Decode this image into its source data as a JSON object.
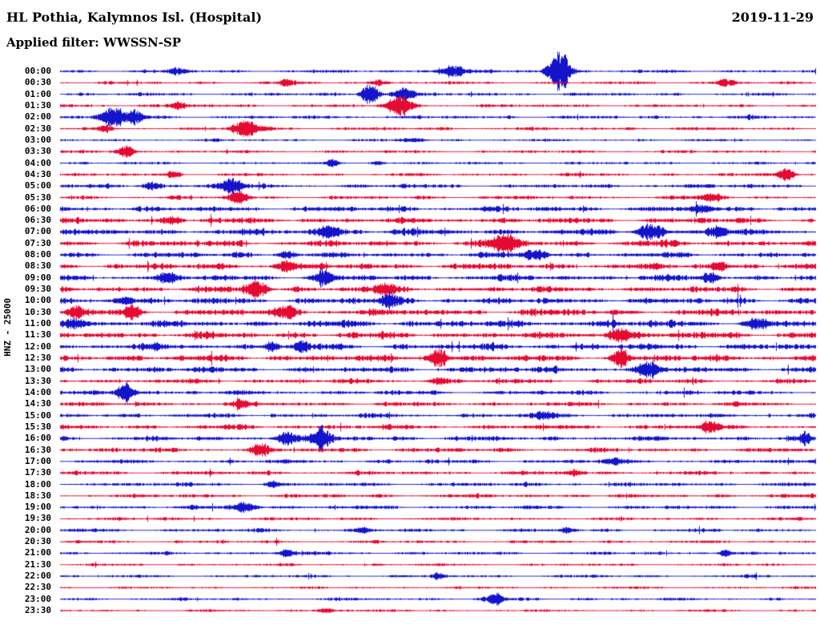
{
  "header": {
    "station_title": "HL Pothia, Kalymnos Isl. (Hospital)",
    "date": "2019-11-29",
    "filter_label": "Applied filter: WWSSN-SP"
  },
  "chart_data": {
    "type": "line",
    "variant": "helicorder-seismogram",
    "title": "HL Pothia, Kalymnos Isl. (Hospital)",
    "date": "2019-11-29",
    "filter": "WWSSN-SP",
    "channel_scale": "HNZ - 25000",
    "row_interval_minutes": 30,
    "legend": "none",
    "grid": false,
    "colors": {
      "blue": "#1414cc",
      "red": "#e60a33"
    },
    "rows": [
      {
        "label": "00:00",
        "color": "blue",
        "amp": 2.0,
        "bursts": [
          {
            "x": 0.155,
            "a": 4,
            "w": 0.01
          },
          {
            "x": 0.52,
            "a": 8,
            "w": 0.012
          },
          {
            "x": 0.66,
            "a": 26,
            "w": 0.01
          }
        ]
      },
      {
        "label": "00:30",
        "color": "red",
        "amp": 1.8,
        "bursts": [
          {
            "x": 0.3,
            "a": 3,
            "w": 0.008
          },
          {
            "x": 0.42,
            "a": 4,
            "w": 0.006
          },
          {
            "x": 0.88,
            "a": 4,
            "w": 0.008
          }
        ]
      },
      {
        "label": "01:00",
        "color": "blue",
        "amp": 2.0,
        "bursts": [
          {
            "x": 0.41,
            "a": 14,
            "w": 0.008
          },
          {
            "x": 0.455,
            "a": 9,
            "w": 0.01
          }
        ]
      },
      {
        "label": "01:30",
        "color": "red",
        "amp": 2.0,
        "bursts": [
          {
            "x": 0.155,
            "a": 5,
            "w": 0.008
          },
          {
            "x": 0.45,
            "a": 13,
            "w": 0.012
          }
        ]
      },
      {
        "label": "02:00",
        "color": "blue",
        "amp": 2.2,
        "bursts": [
          {
            "x": 0.07,
            "a": 14,
            "w": 0.012
          },
          {
            "x": 0.1,
            "a": 9,
            "w": 0.008
          }
        ]
      },
      {
        "label": "02:30",
        "color": "red",
        "amp": 2.0,
        "bursts": [
          {
            "x": 0.06,
            "a": 4,
            "w": 0.006
          },
          {
            "x": 0.245,
            "a": 12,
            "w": 0.012
          }
        ]
      },
      {
        "label": "03:00",
        "color": "blue",
        "amp": 1.6,
        "bursts": [
          {
            "x": 0.47,
            "a": 3,
            "w": 0.01
          }
        ]
      },
      {
        "label": "03:30",
        "color": "red",
        "amp": 1.8,
        "bursts": [
          {
            "x": 0.085,
            "a": 8,
            "w": 0.008
          }
        ]
      },
      {
        "label": "04:00",
        "color": "blue",
        "amp": 1.6,
        "bursts": [
          {
            "x": 0.36,
            "a": 4,
            "w": 0.006
          },
          {
            "x": 0.42,
            "a": 3,
            "w": 0.006
          }
        ]
      },
      {
        "label": "04:30",
        "color": "red",
        "amp": 2.0,
        "bursts": [
          {
            "x": 0.15,
            "a": 5,
            "w": 0.006
          },
          {
            "x": 0.96,
            "a": 9,
            "w": 0.008
          }
        ]
      },
      {
        "label": "05:00",
        "color": "blue",
        "amp": 2.5,
        "bursts": [
          {
            "x": 0.12,
            "a": 6,
            "w": 0.008
          },
          {
            "x": 0.225,
            "a": 10,
            "w": 0.01
          }
        ]
      },
      {
        "label": "05:30",
        "color": "red",
        "amp": 2.2,
        "bursts": [
          {
            "x": 0.235,
            "a": 9,
            "w": 0.008
          },
          {
            "x": 0.86,
            "a": 6,
            "w": 0.01
          }
        ]
      },
      {
        "label": "06:00",
        "color": "blue",
        "amp": 3.5,
        "bursts": [
          {
            "x": 0.85,
            "a": 5,
            "w": 0.01
          }
        ]
      },
      {
        "label": "06:30",
        "color": "red",
        "amp": 3.5,
        "bursts": [
          {
            "x": 0.15,
            "a": 5,
            "w": 0.008
          }
        ]
      },
      {
        "label": "07:00",
        "color": "blue",
        "amp": 4.0,
        "bursts": [
          {
            "x": 0.355,
            "a": 10,
            "w": 0.01
          },
          {
            "x": 0.78,
            "a": 10,
            "w": 0.012
          },
          {
            "x": 0.87,
            "a": 8,
            "w": 0.008
          }
        ]
      },
      {
        "label": "07:30",
        "color": "red",
        "amp": 4.0,
        "bursts": [
          {
            "x": 0.59,
            "a": 12,
            "w": 0.012
          }
        ]
      },
      {
        "label": "08:00",
        "color": "blue",
        "amp": 3.5,
        "bursts": [
          {
            "x": 0.3,
            "a": 5,
            "w": 0.008
          },
          {
            "x": 0.63,
            "a": 6,
            "w": 0.01
          }
        ]
      },
      {
        "label": "08:30",
        "color": "red",
        "amp": 3.8,
        "bursts": [
          {
            "x": 0.3,
            "a": 8,
            "w": 0.008
          },
          {
            "x": 0.87,
            "a": 6,
            "w": 0.008
          }
        ]
      },
      {
        "label": "09:00",
        "color": "blue",
        "amp": 3.8,
        "bursts": [
          {
            "x": 0.14,
            "a": 6,
            "w": 0.008
          },
          {
            "x": 0.35,
            "a": 10,
            "w": 0.008
          },
          {
            "x": 0.86,
            "a": 6,
            "w": 0.008
          }
        ]
      },
      {
        "label": "09:30",
        "color": "red",
        "amp": 3.8,
        "bursts": [
          {
            "x": 0.26,
            "a": 12,
            "w": 0.01
          },
          {
            "x": 0.43,
            "a": 6,
            "w": 0.01
          }
        ]
      },
      {
        "label": "10:00",
        "color": "blue",
        "amp": 4.0,
        "bursts": [
          {
            "x": 0.085,
            "a": 6,
            "w": 0.008
          },
          {
            "x": 0.435,
            "a": 10,
            "w": 0.008
          }
        ]
      },
      {
        "label": "10:30",
        "color": "red",
        "amp": 4.2,
        "bursts": [
          {
            "x": 0.02,
            "a": 8,
            "w": 0.008
          },
          {
            "x": 0.095,
            "a": 8,
            "w": 0.008
          },
          {
            "x": 0.3,
            "a": 6,
            "w": 0.01
          }
        ]
      },
      {
        "label": "11:00",
        "color": "blue",
        "amp": 4.5,
        "bursts": [
          {
            "x": 0.02,
            "a": 6,
            "w": 0.01
          },
          {
            "x": 0.92,
            "a": 6,
            "w": 0.01
          }
        ]
      },
      {
        "label": "11:30",
        "color": "red",
        "amp": 4.2,
        "bursts": [
          {
            "x": 0.74,
            "a": 10,
            "w": 0.01
          }
        ]
      },
      {
        "label": "12:00",
        "color": "blue",
        "amp": 4.0,
        "bursts": [
          {
            "x": 0.28,
            "a": 8,
            "w": 0.006
          },
          {
            "x": 0.32,
            "a": 6,
            "w": 0.006
          }
        ]
      },
      {
        "label": "12:30",
        "color": "red",
        "amp": 4.2,
        "bursts": [
          {
            "x": 0.5,
            "a": 14,
            "w": 0.008
          },
          {
            "x": 0.74,
            "a": 10,
            "w": 0.008
          }
        ]
      },
      {
        "label": "13:00",
        "color": "blue",
        "amp": 3.8,
        "bursts": [
          {
            "x": 0.78,
            "a": 9,
            "w": 0.01
          }
        ]
      },
      {
        "label": "13:30",
        "color": "red",
        "amp": 3.0,
        "bursts": [
          {
            "x": 0.5,
            "a": 4,
            "w": 0.008
          }
        ]
      },
      {
        "label": "14:00",
        "color": "blue",
        "amp": 2.8,
        "bursts": [
          {
            "x": 0.085,
            "a": 12,
            "w": 0.008
          }
        ]
      },
      {
        "label": "14:30",
        "color": "red",
        "amp": 2.8,
        "bursts": [
          {
            "x": 0.24,
            "a": 4,
            "w": 0.008
          }
        ]
      },
      {
        "label": "15:00",
        "color": "blue",
        "amp": 2.8,
        "bursts": [
          {
            "x": 0.64,
            "a": 4,
            "w": 0.01
          }
        ]
      },
      {
        "label": "15:30",
        "color": "red",
        "amp": 3.0,
        "bursts": [
          {
            "x": 0.86,
            "a": 8,
            "w": 0.008
          }
        ]
      },
      {
        "label": "16:00",
        "color": "blue",
        "amp": 3.0,
        "bursts": [
          {
            "x": 0.3,
            "a": 9,
            "w": 0.01
          },
          {
            "x": 0.345,
            "a": 11,
            "w": 0.01
          },
          {
            "x": 0.985,
            "a": 7,
            "w": 0.006
          }
        ]
      },
      {
        "label": "16:30",
        "color": "red",
        "amp": 2.8,
        "bursts": [
          {
            "x": 0.265,
            "a": 8,
            "w": 0.008
          }
        ]
      },
      {
        "label": "17:00",
        "color": "blue",
        "amp": 2.5,
        "bursts": [
          {
            "x": 0.73,
            "a": 4,
            "w": 0.01
          }
        ]
      },
      {
        "label": "17:30",
        "color": "red",
        "amp": 2.5,
        "bursts": [
          {
            "x": 0.68,
            "a": 4,
            "w": 0.008
          }
        ]
      },
      {
        "label": "18:00",
        "color": "blue",
        "amp": 2.5,
        "bursts": [
          {
            "x": 0.28,
            "a": 4,
            "w": 0.006
          }
        ]
      },
      {
        "label": "18:30",
        "color": "red",
        "amp": 2.5,
        "bursts": []
      },
      {
        "label": "19:00",
        "color": "blue",
        "amp": 2.5,
        "bursts": [
          {
            "x": 0.245,
            "a": 7,
            "w": 0.01
          }
        ]
      },
      {
        "label": "19:30",
        "color": "red",
        "amp": 2.0,
        "bursts": []
      },
      {
        "label": "20:00",
        "color": "blue",
        "amp": 2.2,
        "bursts": [
          {
            "x": 0.4,
            "a": 4,
            "w": 0.006
          },
          {
            "x": 0.67,
            "a": 4,
            "w": 0.006
          }
        ]
      },
      {
        "label": "20:30",
        "color": "red",
        "amp": 1.8,
        "bursts": []
      },
      {
        "label": "21:00",
        "color": "blue",
        "amp": 2.0,
        "bursts": [
          {
            "x": 0.3,
            "a": 5,
            "w": 0.008
          },
          {
            "x": 0.88,
            "a": 5,
            "w": 0.006
          }
        ]
      },
      {
        "label": "21:30",
        "color": "red",
        "amp": 1.6,
        "bursts": []
      },
      {
        "label": "22:00",
        "color": "blue",
        "amp": 1.8,
        "bursts": [
          {
            "x": 0.5,
            "a": 4,
            "w": 0.006
          }
        ]
      },
      {
        "label": "22:30",
        "color": "red",
        "amp": 1.5,
        "bursts": []
      },
      {
        "label": "23:00",
        "color": "blue",
        "amp": 1.8,
        "bursts": [
          {
            "x": 0.575,
            "a": 8,
            "w": 0.008
          }
        ]
      },
      {
        "label": "23:30",
        "color": "red",
        "amp": 1.5,
        "bursts": [
          {
            "x": 0.35,
            "a": 3,
            "w": 0.008
          }
        ]
      }
    ]
  }
}
